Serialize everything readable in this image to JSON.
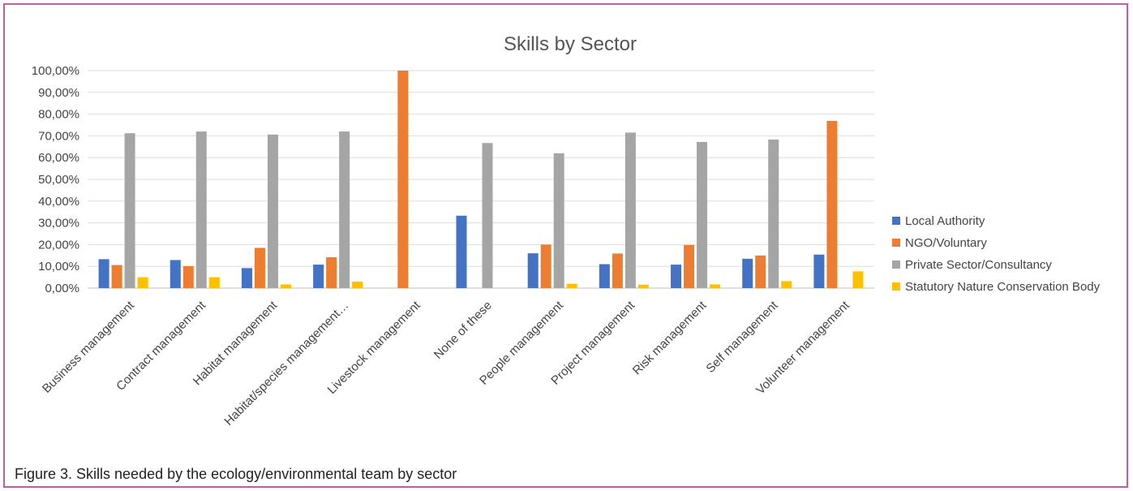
{
  "caption": "Figure 3. Skills needed by the ecology/environmental team by sector",
  "colors": {
    "frame": "#c45aa8",
    "grid": "#dddddd",
    "axis_text": "#444444",
    "title_text": "#555555"
  },
  "chart_data": {
    "type": "bar",
    "title": "Skills by Sector",
    "xlabel": "",
    "ylabel": "",
    "ylim": [
      0,
      100
    ],
    "yticks": [
      "0,00%",
      "10,00%",
      "20,00%",
      "30,00%",
      "40,00%",
      "50,00%",
      "60,00%",
      "70,00%",
      "80,00%",
      "90,00%",
      "100,00%"
    ],
    "grid": true,
    "legend_position": "right",
    "categories": [
      "Business management",
      "Contract management",
      "Habitat management",
      "Habitat/species management…",
      "Livestock management",
      "None of these",
      "People management",
      "Project management",
      "Risk management",
      "Self management",
      "Volunteer management"
    ],
    "series": [
      {
        "name": "Local Authority",
        "color": "#4472c4",
        "values": [
          13.3,
          12.9,
          9.2,
          10.8,
          0,
          33.3,
          16.0,
          11.0,
          10.8,
          13.5,
          15.4
        ]
      },
      {
        "name": "NGO/Voluntary",
        "color": "#ed7d31",
        "values": [
          10.6,
          10.1,
          18.5,
          14.2,
          100.0,
          0,
          20.0,
          15.9,
          19.8,
          15.0,
          76.9
        ]
      },
      {
        "name": "Private Sector/Consultancy",
        "color": "#a5a5a5",
        "values": [
          71.2,
          72.0,
          70.6,
          72.0,
          0,
          66.7,
          62.0,
          71.5,
          67.2,
          68.3,
          0
        ]
      },
      {
        "name": "Statutory Nature Conservation Body",
        "color": "#ffc000",
        "values": [
          5.0,
          5.0,
          1.7,
          3.0,
          0,
          0,
          2.0,
          1.6,
          1.7,
          3.2,
          7.7
        ]
      }
    ]
  }
}
